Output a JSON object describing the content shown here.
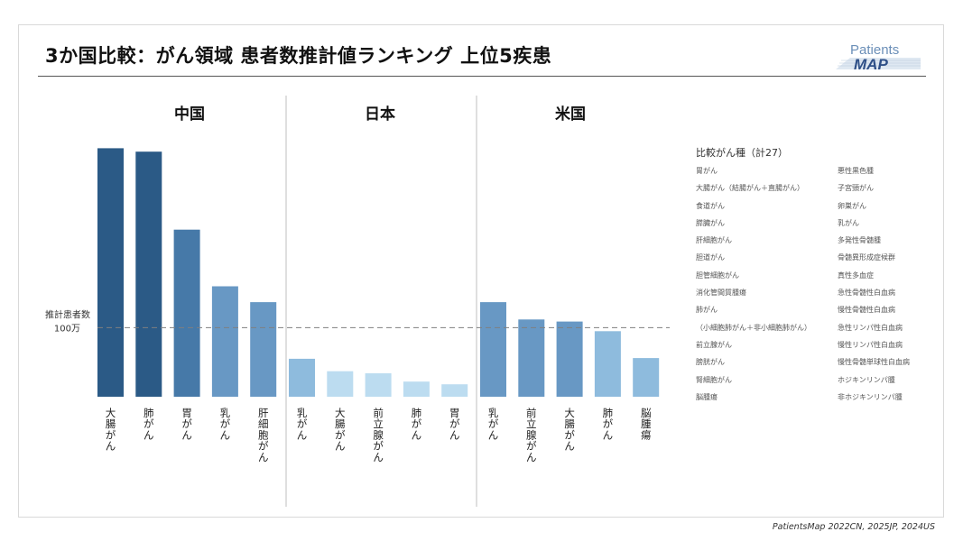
{
  "title": "3か国比較：がん領域 患者数推計値ランキング 上位5疾患",
  "logo": {
    "line1": "Patients",
    "line2": "MAP"
  },
  "source": "PatientsMap 2022CN, 2025JP, 2024US",
  "legend": {
    "title": "比較がん種（計27）",
    "col1": [
      "胃がん",
      "大腸がん（結腸がん＋直腸がん）",
      "食道がん",
      "膵臓がん",
      "肝細胞がん",
      "胆道がん",
      "胆管細胞がん",
      "消化管間質腫瘍",
      "肺がん",
      "（小細胞肺がん＋非小細胞肺がん）",
      "前立腺がん",
      "膀胱がん",
      "腎細胞がん",
      "脳腫瘍"
    ],
    "col2": [
      "悪性黒色腫",
      "子宮頸がん",
      "卵巣がん",
      "乳がん",
      "多発性骨髄腫",
      "骨髄異形成症候群",
      "真性多血症",
      "急性骨髄性白血病",
      "慢性骨髄性白血病",
      "急性リンパ性白血病",
      "慢性リンパ性白血病",
      "慢性骨髄単球性白血病",
      "ホジキンリンパ腫",
      "非ホジキンリンパ腫"
    ]
  },
  "colors": {
    "c1": "#2b5a86",
    "c2": "#4679a8",
    "c3": "#6898c4",
    "c4": "#8ebbdd",
    "c5": "#bcdcf0"
  },
  "chart_data": {
    "type": "bar",
    "reference_line": {
      "label_line1": "推計患者数",
      "label_line2": "100万",
      "value": 100
    },
    "groups": [
      {
        "name": "中国",
        "bars": [
          {
            "label": "大腸がん",
            "value": 360,
            "color": "c1"
          },
          {
            "label": "肺がん",
            "value": 355,
            "color": "c1"
          },
          {
            "label": "胃がん",
            "value": 242,
            "color": "c2"
          },
          {
            "label": "乳がん",
            "value": 160,
            "color": "c3"
          },
          {
            "label": "肝細胞がん",
            "value": 137,
            "color": "c3"
          }
        ]
      },
      {
        "name": "日本",
        "bars": [
          {
            "label": "乳がん",
            "value": 55,
            "color": "c4"
          },
          {
            "label": "大腸がん",
            "value": 37,
            "color": "c5"
          },
          {
            "label": "前立腺がん",
            "value": 34,
            "color": "c5"
          },
          {
            "label": "肺がん",
            "value": 22,
            "color": "c5"
          },
          {
            "label": "胃がん",
            "value": 18,
            "color": "c5"
          }
        ]
      },
      {
        "name": "米国",
        "bars": [
          {
            "label": "乳がん",
            "value": 137,
            "color": "c3"
          },
          {
            "label": "前立腺がん",
            "value": 112,
            "color": "c3"
          },
          {
            "label": "大腸がん",
            "value": 109,
            "color": "c3"
          },
          {
            "label": "肺がん",
            "value": 95,
            "color": "c4"
          },
          {
            "label": "脳腫瘍",
            "value": 56,
            "color": "c4"
          }
        ]
      }
    ]
  }
}
